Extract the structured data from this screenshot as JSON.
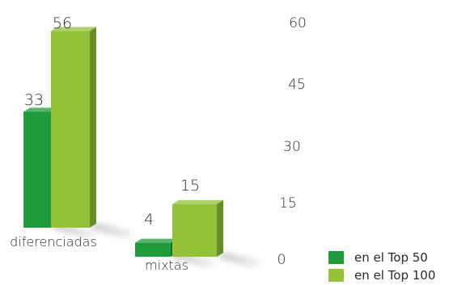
{
  "chart_data": {
    "type": "bar",
    "title": "",
    "xlabel": "",
    "ylabel": "",
    "categories": [
      "diferenciadas",
      "mixtas"
    ],
    "series": [
      {
        "name": "en el Top 50",
        "values": [
          33,
          4
        ],
        "color": "#1f9a3c"
      },
      {
        "name": "en el Top 100",
        "values": [
          56,
          15
        ],
        "color": "#93c23a"
      }
    ],
    "y_ticks": [
      "60",
      "45",
      "30",
      "15",
      "0"
    ],
    "ylim": [
      0,
      60
    ],
    "grid": false,
    "legend_position": "bottom-right"
  }
}
